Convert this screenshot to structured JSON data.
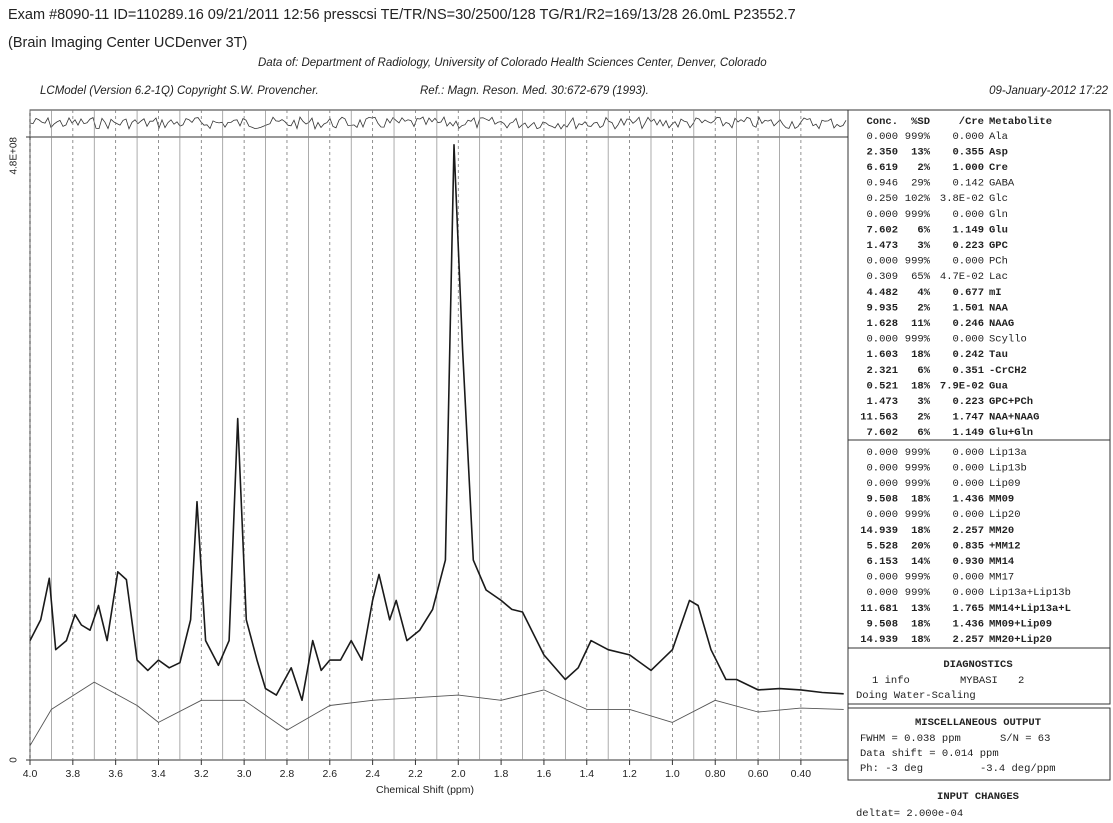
{
  "header": {
    "exam": "Exam #8090-11  ID=110289.16  09/21/2011  12:56  presscsi  TE/TR/NS=30/2500/128  TG/R1/R2=169/13/28  26.0mL  P23552.7",
    "center": "(Brain Imaging Center UCDenver 3T)",
    "data_of": "Data of: Department of Radiology, University of Colorado Health Sciences Center, Denver, Colorado",
    "program": "LCModel (Version 6.2-1Q) Copyright S.W. Provencher.",
    "reference": "Ref.: Magn. Reson. Med. 30:672-679 (1993).",
    "date": "09-January-2012  17:22"
  },
  "chart_data": {
    "type": "line",
    "x_label": "Chemical Shift (ppm)",
    "xlim": [
      4.0,
      0.18
    ],
    "ylim": [
      0,
      480000000
    ],
    "xticks": [
      {
        "value": 4.0,
        "label": "4.0"
      },
      3.8,
      3.6,
      3.4,
      3.2,
      {
        "value": 3.0,
        "label": "3.0"
      },
      2.8,
      2.6,
      2.4,
      2.2,
      {
        "value": 2.0,
        "label": "2.0"
      },
      1.8,
      1.6,
      1.4,
      1.2,
      {
        "value": 1.0,
        "label": "1.0"
      },
      {
        "value": 0.8,
        "label": "0.80"
      },
      {
        "value": 0.6,
        "label": "0.60"
      },
      {
        "value": 0.4,
        "label": "0.40"
      }
    ],
    "yticks": [
      0,
      {
        "value": 480000000,
        "label": "4.8E+08"
      }
    ],
    "grid": true,
    "series": [
      {
        "color": "#1a1a1a",
        "x": [
          4.0,
          3.95,
          3.91,
          3.88,
          3.83,
          3.79,
          3.76,
          3.72,
          3.68,
          3.64,
          3.59,
          3.55,
          3.5,
          3.45,
          3.4,
          3.35,
          3.3,
          3.25,
          3.22,
          3.18,
          3.12,
          3.07,
          3.03,
          2.99,
          2.94,
          2.9,
          2.85,
          2.78,
          2.73,
          2.68,
          2.64,
          2.6,
          2.55,
          2.5,
          2.45,
          2.4,
          2.37,
          2.32,
          2.29,
          2.24,
          2.18,
          2.12,
          2.06,
          2.02,
          1.98,
          1.93,
          1.87,
          1.8,
          1.75,
          1.7,
          1.6,
          1.5,
          1.44,
          1.38,
          1.3,
          1.2,
          1.1,
          1.0,
          0.92,
          0.88,
          0.82,
          0.75,
          0.7,
          0.6,
          0.5,
          0.4,
          0.3,
          0.2
        ],
        "values": [
          92000000,
          108000000,
          140000000,
          85000000,
          92000000,
          112000000,
          104000000,
          100000000,
          119000000,
          92000000,
          145000000,
          139000000,
          77000000,
          69000000,
          77000000,
          71000000,
          75000000,
          108000000,
          199000000,
          92000000,
          73000000,
          92000000,
          263000000,
          108000000,
          77000000,
          55000000,
          50000000,
          71000000,
          46000000,
          92000000,
          69000000,
          77000000,
          77000000,
          92000000,
          77000000,
          123000000,
          143000000,
          108000000,
          123000000,
          92000000,
          100000000,
          116000000,
          154000000,
          474000000,
          316000000,
          154000000,
          131000000,
          123000000,
          116000000,
          114000000,
          81000000,
          62000000,
          71000000,
          92000000,
          85000000,
          81000000,
          69000000,
          85000000,
          123000000,
          119000000,
          85000000,
          62000000,
          62000000,
          54000000,
          55000000,
          54000000,
          52000000,
          51000000
        ]
      },
      {
        "color": "#555555",
        "x": [
          4.0,
          3.9,
          3.7,
          3.5,
          3.4,
          3.2,
          3.0,
          2.8,
          2.6,
          2.4,
          2.2,
          2.0,
          1.8,
          1.6,
          1.4,
          1.2,
          1.0,
          0.8,
          0.6,
          0.4,
          0.2
        ],
        "values": [
          11000000,
          39000000,
          60000000,
          42000000,
          29000000,
          46000000,
          46000000,
          23000000,
          42000000,
          46000000,
          48000000,
          50000000,
          46000000,
          54000000,
          39000000,
          39000000,
          29000000,
          46000000,
          37000000,
          40000000,
          39000000
        ]
      }
    ]
  },
  "table": {
    "columns": [
      "Conc.",
      "%SD",
      "/Cre",
      "Metabolite"
    ],
    "sections": [
      [
        {
          "cells": [
            "0.000",
            "999%",
            "0.000",
            "Ala"
          ],
          "color": "#555555"
        },
        {
          "cells": [
            "2.350",
            "13%",
            "0.355",
            "Asp"
          ],
          "color": "#1f3f9a"
        },
        {
          "cells": [
            "6.619",
            "2%",
            "1.000",
            "Cre"
          ],
          "color": "#1f3f9a"
        },
        {
          "cells": [
            "0.946",
            "29%",
            "0.142",
            "GABA"
          ],
          "color": "#555555"
        },
        {
          "cells": [
            "0.250",
            "102%",
            "3.8E-02",
            "Glc"
          ],
          "color": "#555555"
        },
        {
          "cells": [
            "0.000",
            "999%",
            "0.000",
            "Gln"
          ],
          "color": "#555555"
        },
        {
          "cells": [
            "7.602",
            "6%",
            "1.149",
            "Glu"
          ],
          "color": "#1f3f9a"
        },
        {
          "cells": [
            "1.473",
            "3%",
            "0.223",
            "GPC"
          ],
          "color": "#1f3f9a"
        },
        {
          "cells": [
            "0.000",
            "999%",
            "0.000",
            "PCh"
          ],
          "color": "#555555"
        },
        {
          "cells": [
            "0.309",
            "65%",
            "4.7E-02",
            "Lac"
          ],
          "color": "#555555"
        },
        {
          "cells": [
            "4.482",
            "4%",
            "0.677",
            "mI"
          ],
          "color": "#1f3f9a"
        },
        {
          "cells": [
            "9.935",
            "2%",
            "1.501",
            "NAA"
          ],
          "color": "#1f3f9a"
        },
        {
          "cells": [
            "1.628",
            "11%",
            "0.246",
            "NAAG"
          ],
          "color": "#1f3f9a"
        },
        {
          "cells": [
            "0.000",
            "999%",
            "0.000",
            "Scyllo"
          ],
          "color": "#555555"
        },
        {
          "cells": [
            "1.603",
            "18%",
            "0.242",
            "Tau"
          ],
          "color": "#1f3f9a"
        },
        {
          "cells": [
            "2.321",
            "6%",
            "0.351",
            "-CrCH2"
          ],
          "color": "#1f3f9a"
        },
        {
          "cells": [
            "0.521",
            "18%",
            "7.9E-02",
            "Gua"
          ],
          "color": "#1f3f9a"
        },
        {
          "cells": [
            "1.473",
            "3%",
            "0.223",
            "GPC+PCh"
          ],
          "color": "#1f3f9a"
        },
        {
          "cells": [
            "11.563",
            "2%",
            "1.747",
            "NAA+NAAG"
          ],
          "color": "#1f3f9a"
        },
        {
          "cells": [
            "7.602",
            "6%",
            "1.149",
            "Glu+Gln"
          ],
          "color": "#1f3f9a"
        }
      ],
      [
        {
          "cells": [
            "0.000",
            "999%",
            "0.000",
            "Lip13a"
          ],
          "color": "#555555"
        },
        {
          "cells": [
            "0.000",
            "999%",
            "0.000",
            "Lip13b"
          ],
          "color": "#555555"
        },
        {
          "cells": [
            "0.000",
            "999%",
            "0.000",
            "Lip09"
          ],
          "color": "#555555"
        },
        {
          "cells": [
            "9.508",
            "18%",
            "1.436",
            "MM09"
          ],
          "color": "#1f3f9a"
        },
        {
          "cells": [
            "0.000",
            "999%",
            "0.000",
            "Lip20"
          ],
          "color": "#555555"
        },
        {
          "cells": [
            "14.939",
            "18%",
            "2.257",
            "MM20"
          ],
          "color": "#1f3f9a"
        },
        {
          "cells": [
            "5.528",
            "20%",
            "0.835",
            "+MM12"
          ],
          "color": "#e0204a"
        },
        {
          "cells": [
            "6.153",
            "14%",
            "0.930",
            "MM14"
          ],
          "color": "#1f3f9a"
        },
        {
          "cells": [
            "0.000",
            "999%",
            "0.000",
            "MM17"
          ],
          "color": "#555555"
        },
        {
          "cells": [
            "0.000",
            "999%",
            "0.000",
            "Lip13a+Lip13b"
          ],
          "color": "#555555"
        },
        {
          "cells": [
            "11.681",
            "13%",
            "1.765",
            "MM14+Lip13a+L"
          ],
          "color": "#1f3f9a"
        },
        {
          "cells": [
            "9.508",
            "18%",
            "1.436",
            "MM09+Lip09"
          ],
          "color": "#1f3f9a"
        },
        {
          "cells": [
            "14.939",
            "18%",
            "2.257",
            "MM20+Lip20"
          ],
          "color": "#1f3f9a"
        }
      ]
    ]
  },
  "diagnostics": {
    "title": "DIAGNOSTICS",
    "info": "1 info",
    "code": "MYBASI",
    "number": "2",
    "message": "Doing Water-Scaling"
  },
  "misc": {
    "title": "MISCELLANEOUS OUTPUT",
    "fwhm": "FWHM = 0.038 ppm",
    "sn": "S/N =  63",
    "shift": "Data shift = 0.014 ppm",
    "ph0": "Ph:  -3 deg",
    "ph1": "-3.4 deg/ppm"
  },
  "input_changes": {
    "title": "INPUT CHANGES",
    "deltat": "deltat= 2.000e-04"
  }
}
